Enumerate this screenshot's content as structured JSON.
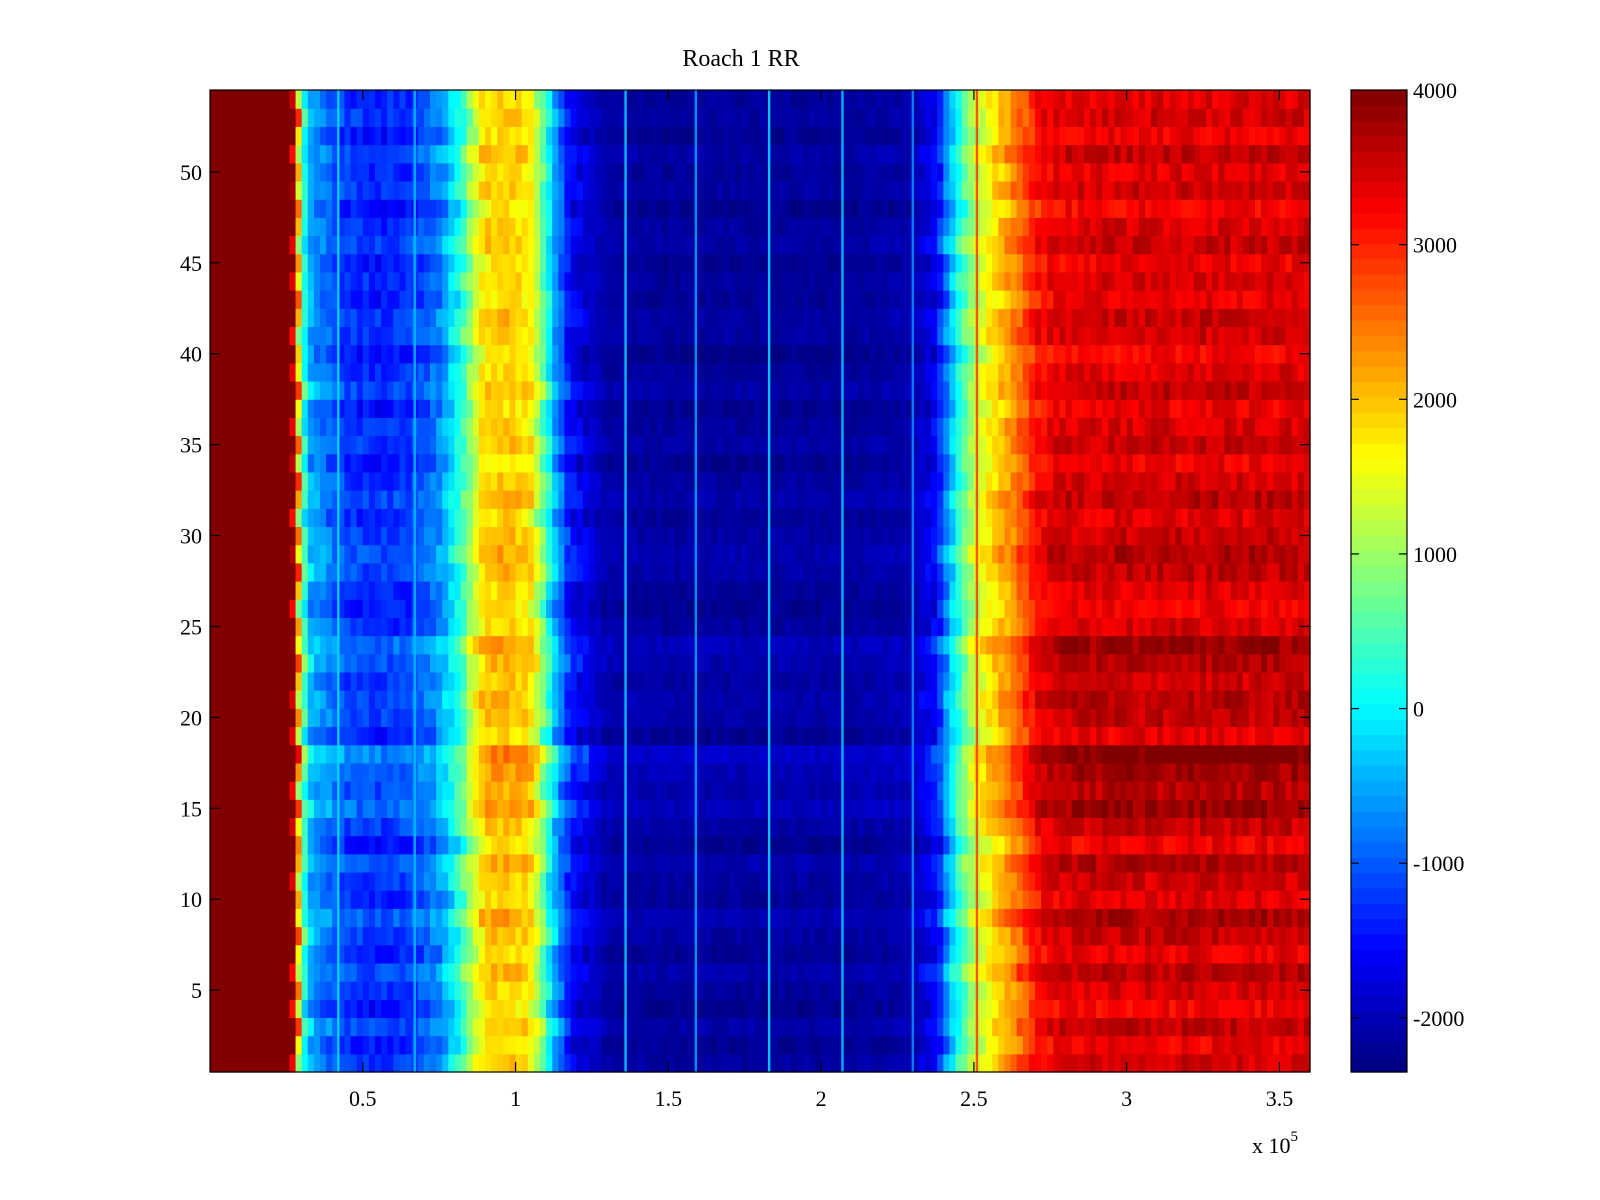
{
  "chart_data": {
    "type": "heatmap",
    "title": "Roach 1 RR",
    "xlabel": "",
    "ylabel": "",
    "x_exponent_label": "x 10",
    "x_exponent_power": "5",
    "xlim": [
      0,
      3.6
    ],
    "ylim": [
      0.5,
      54.5
    ],
    "grid": false,
    "colormap": "jet",
    "clim": [
      -2350,
      4000
    ],
    "x_ticks": [
      0.5,
      1,
      1.5,
      2,
      2.5,
      3,
      3.5
    ],
    "x_tick_labels": [
      "0.5",
      "1",
      "1.5",
      "2",
      "2.5",
      "3",
      "3.5"
    ],
    "y_ticks": [
      5,
      10,
      15,
      20,
      25,
      30,
      35,
      40,
      45,
      50
    ],
    "y_tick_labels": [
      "5",
      "10",
      "15",
      "20",
      "25",
      "30",
      "35",
      "40",
      "45",
      "50"
    ],
    "colorbar": {
      "ticks": [
        -2000,
        -1000,
        0,
        1000,
        2000,
        3000,
        4000
      ],
      "tick_labels": [
        "-2000",
        "-1000",
        "0",
        "1000",
        "2000",
        "3000",
        "4000"
      ]
    },
    "rows": 54,
    "column_profile": {
      "x": [
        0,
        0.27,
        0.285,
        0.3,
        0.33,
        0.45,
        0.55,
        0.65,
        0.75,
        0.82,
        0.86,
        0.9,
        0.97,
        1.05,
        1.08,
        1.12,
        1.18,
        1.3,
        1.5,
        1.7,
        1.9,
        2.1,
        2.3,
        2.38,
        2.43,
        2.48,
        2.55,
        2.62,
        2.68,
        2.72,
        2.8,
        3.0,
        3.3,
        3.6
      ],
      "z": [
        4000,
        4000,
        2500,
        700,
        -500,
        -1200,
        -1300,
        -1200,
        -700,
        300,
        1200,
        1900,
        2000,
        1800,
        1000,
        -200,
        -1500,
        -2100,
        -2150,
        -2150,
        -2150,
        -2150,
        -2050,
        -1500,
        -200,
        900,
        1700,
        2300,
        2900,
        3300,
        3450,
        3500,
        3500,
        3500
      ]
    },
    "vertical_lines": [
      {
        "x": 0.42,
        "z": -200
      },
      {
        "x": 0.67,
        "z": -400
      },
      {
        "x": 1.36,
        "z": -300
      },
      {
        "x": 1.59,
        "z": -600
      },
      {
        "x": 1.83,
        "z": -250
      },
      {
        "x": 2.07,
        "z": -350
      },
      {
        "x": 2.3,
        "z": -700
      },
      {
        "x": 2.51,
        "z": 2800
      }
    ],
    "row_offsets": [
      350,
      150,
      450,
      100,
      300,
      500,
      200,
      400,
      600,
      250,
      350,
      550,
      150,
      400,
      700,
      500,
      650,
      900,
      200,
      450,
      500,
      350,
      550,
      700,
      300,
      150,
      250,
      450,
      550,
      400,
      250,
      500,
      350,
      150,
      400,
      300,
      150,
      450,
      250,
      100,
      350,
      400,
      200,
      300,
      150,
      400,
      300,
      100,
      350,
      250,
      450,
      150,
      350,
      250
    ],
    "noise_amplitude": 450
  }
}
